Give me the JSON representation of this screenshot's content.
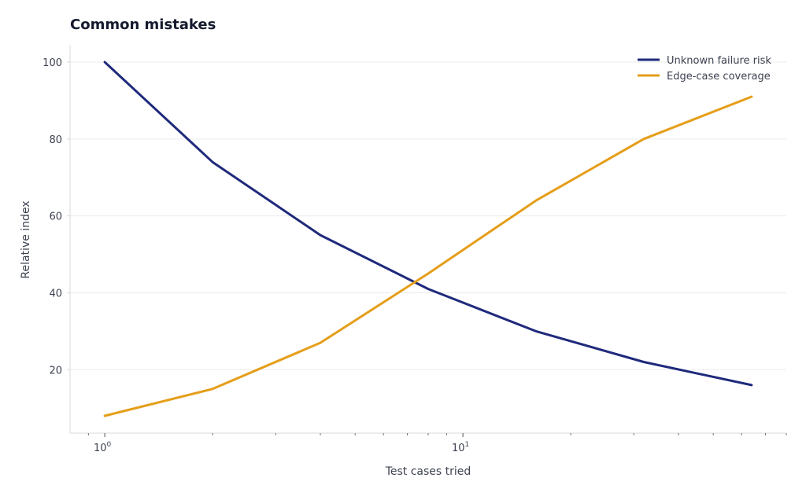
{
  "chart_data": {
    "type": "line",
    "title": "Common mistakes",
    "xlabel": "Test cases tried",
    "ylabel": "Relative index",
    "x_scale": "log",
    "x": [
      1,
      2,
      4,
      8,
      16,
      32,
      64
    ],
    "xlim": [
      0.8,
      80
    ],
    "x_ticks": [
      {
        "value": 1,
        "base": "10",
        "exp": "0"
      },
      {
        "value": 10,
        "base": "10",
        "exp": "1"
      }
    ],
    "ylim": [
      3.5,
      104.5
    ],
    "y_ticks": [
      20,
      40,
      60,
      80,
      100
    ],
    "grid": "horizontal",
    "legend_position": "top-right",
    "series": [
      {
        "name": "Unknown failure risk",
        "color": "#1f2a7c",
        "values": [
          100,
          74,
          55,
          41,
          30,
          22,
          16
        ]
      },
      {
        "name": "Edge-case coverage",
        "color": "#e59e1a",
        "values": [
          8,
          15,
          27,
          45,
          64,
          80,
          91
        ]
      }
    ]
  }
}
